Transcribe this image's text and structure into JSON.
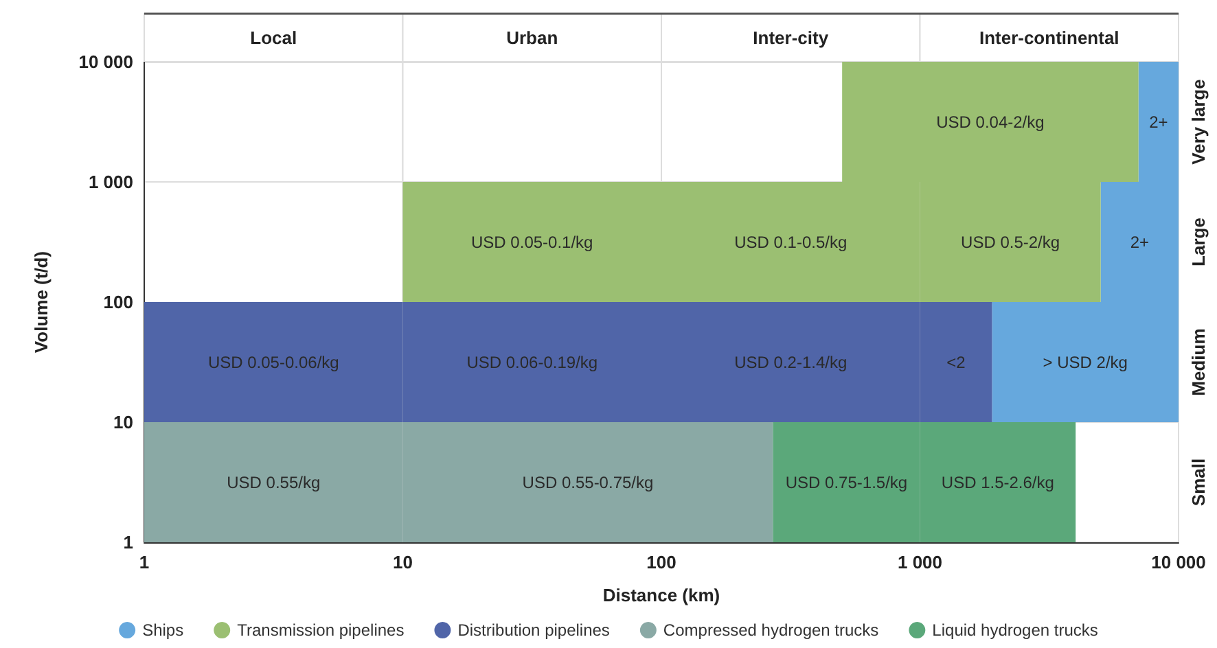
{
  "chart_data": {
    "type": "bar",
    "orientation": "horizontal",
    "xlabel": "Distance (km)",
    "ylabel": "Volume (t/d)",
    "log": "x",
    "categories": [
      "Very large",
      "Large",
      "Medium",
      "Small"
    ],
    "series": [
      {
        "name": "Ships",
        "color": "#66a8dd",
        "base": [
          7000,
          5000,
          1900,
          null
        ],
        "values": [
          3000,
          5000,
          8100,
          null
        ],
        "value_labels": [
          "2+",
          "2+",
          "> USD 2/kg",
          null
        ]
      },
      {
        "name": "Transmission pipelines",
        "color": "#9bbf72",
        "base": [
          500,
          10,
          null,
          null
        ],
        "values": [
          6500,
          90,
          null,
          null
        ],
        "value_labels": [
          "USD 0.04-2/kg",
          "USD 0.05-0.1/kg",
          null,
          null
        ]
      },
      {
        "color": "#9bbf72",
        "base": [
          null,
          100,
          null,
          null
        ],
        "values": [
          null,
          900,
          null,
          null
        ],
        "value_labels": [
          null,
          "USD 0.1-0.5/kg",
          null,
          null
        ]
      },
      {
        "color": "#9bbf72",
        "base": [
          null,
          1000,
          null,
          null
        ],
        "values": [
          null,
          4000,
          null,
          null
        ],
        "value_labels": [
          null,
          "USD 0.5-2/kg",
          null,
          null
        ]
      },
      {
        "name": "Distribution pipelines",
        "color": "#5065a8",
        "base": [
          null,
          null,
          1,
          null
        ],
        "values": [
          null,
          null,
          9,
          null
        ],
        "value_labels": [
          null,
          null,
          "USD 0.05-0.06/kg",
          null
        ]
      },
      {
        "color": "#5065a8",
        "base": [
          null,
          null,
          10,
          null
        ],
        "values": [
          null,
          null,
          90,
          null
        ],
        "value_labels": [
          null,
          null,
          "USD 0.06-0.19/kg",
          null
        ]
      },
      {
        "color": "#5065a8",
        "base": [
          null,
          null,
          100,
          null
        ],
        "values": [
          null,
          null,
          900,
          null
        ],
        "value_labels": [
          null,
          null,
          "USD 0.2-1.4/kg",
          null
        ]
      },
      {
        "color": "#5065a8",
        "base": [
          null,
          null,
          1000,
          null
        ],
        "values": [
          null,
          null,
          900,
          null
        ],
        "value_labels": [
          null,
          null,
          "<2",
          null
        ]
      },
      {
        "name": "Compressed hydrogen trucks",
        "color": "#8aa9a5",
        "base": [
          null,
          null,
          null,
          1
        ],
        "values": [
          null,
          null,
          null,
          9
        ],
        "value_labels": [
          null,
          null,
          null,
          "USD 0.55/kg"
        ]
      },
      {
        "color": "#8aa9a5",
        "base": [
          null,
          null,
          null,
          10
        ],
        "values": [
          null,
          null,
          null,
          260
        ],
        "value_labels": [
          null,
          null,
          null,
          "USD 0.55-0.75/kg"
        ]
      },
      {
        "name": "Liquid hydrogen trucks",
        "color": "#5ba87a",
        "base": [
          null,
          null,
          null,
          270
        ],
        "values": [
          null,
          null,
          null,
          730
        ],
        "value_labels": [
          null,
          null,
          null,
          "USD 0.75-1.5/kg"
        ]
      },
      {
        "color": "#5ba87a",
        "base": [
          null,
          null,
          null,
          1000
        ],
        "values": [
          null,
          null,
          null,
          3000
        ],
        "value_labels": [
          null,
          null,
          null,
          "USD 1.5-2.6/kg"
        ]
      }
    ],
    "xlim": [
      1,
      10000
    ],
    "xticks": [
      1,
      10,
      100,
      {
        "value": 1000,
        "label": "1 000"
      },
      {
        "value": 10000,
        "label": "10 000"
      }
    ],
    "bands": [
      {
        "axis": "x",
        "from": 1,
        "to": 10,
        "label": "Local",
        "color": "#ffffff"
      },
      {
        "axis": "x",
        "from": 10,
        "to": 100,
        "label": "Urban",
        "color": "#ffffff"
      },
      {
        "axis": "x",
        "from": 100,
        "to": 1000,
        "label": "Inter-city",
        "color": "#ffffff"
      },
      {
        "axis": "x",
        "from": 1000,
        "to": 10000,
        "label": "Inter-continental",
        "color": "#ffffff"
      }
    ],
    "annotations": [
      "10 000",
      "1 000",
      "100",
      "10",
      "1"
    ],
    "grid": true,
    "legend": "bottom",
    "marker": "circle"
  }
}
